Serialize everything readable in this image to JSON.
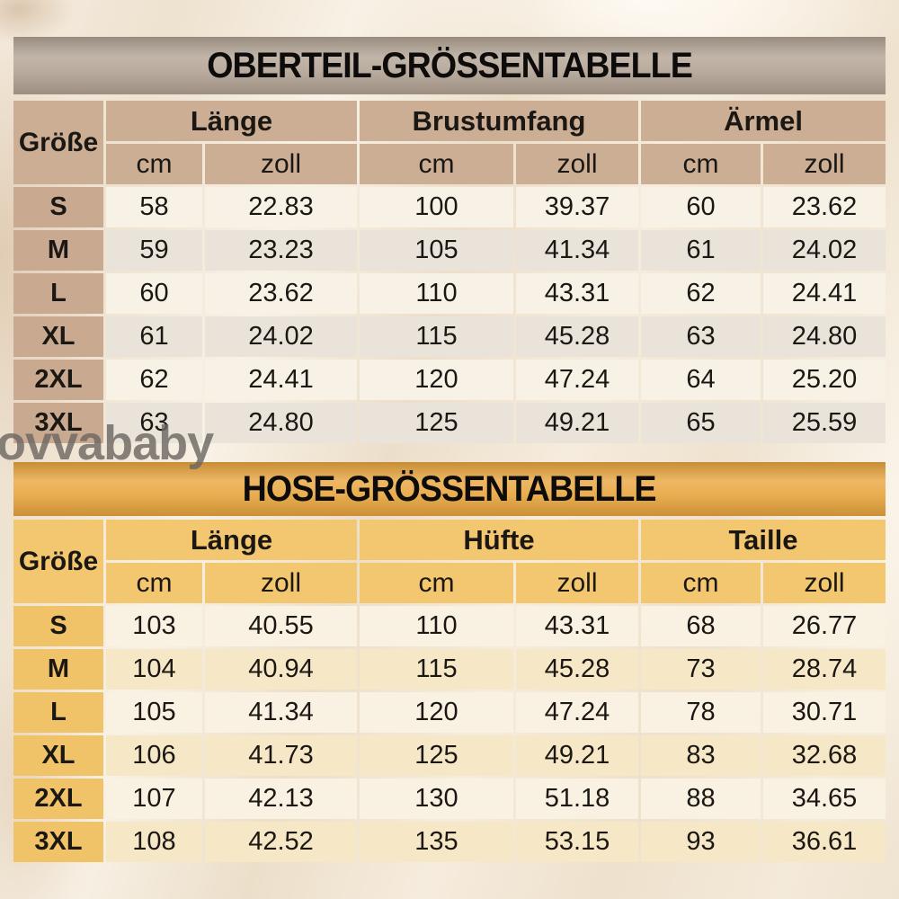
{
  "page": {
    "background_color": "#f2e7d7",
    "watermark": "ovvababy",
    "watermark_color": "#6b6661"
  },
  "tables": [
    {
      "title": "OBERTEIL-GRÖSSENTABELLE",
      "size_header": "Größe",
      "groups": [
        {
          "label": "Länge"
        },
        {
          "label": "Brustumfang"
        },
        {
          "label": "Ärmel"
        }
      ],
      "sub_headers": [
        "cm",
        "zoll",
        "cm",
        "zoll",
        "cm",
        "zoll"
      ],
      "theme": {
        "banner": "#b2a394",
        "header_bg": "#ccae95",
        "size_bg": "#c9aa91",
        "row_odd": "#f8f1e6",
        "row_even": "#e9e3da"
      },
      "rows": [
        {
          "size": "S",
          "values": [
            "58",
            "22.83",
            "100",
            "39.37",
            "60",
            "23.62"
          ]
        },
        {
          "size": "M",
          "values": [
            "59",
            "23.23",
            "105",
            "41.34",
            "61",
            "24.02"
          ]
        },
        {
          "size": "L",
          "values": [
            "60",
            "23.62",
            "110",
            "43.31",
            "62",
            "24.41"
          ]
        },
        {
          "size": "XL",
          "values": [
            "61",
            "24.02",
            "115",
            "45.28",
            "63",
            "24.80"
          ]
        },
        {
          "size": "2XL",
          "values": [
            "62",
            "24.41",
            "120",
            "47.24",
            "64",
            "25.20"
          ]
        },
        {
          "size": "3XL",
          "values": [
            "63",
            "24.80",
            "125",
            "49.21",
            "65",
            "25.59"
          ]
        }
      ]
    },
    {
      "title": "HOSE-GRÖSSENTABELLE",
      "size_header": "Größe",
      "groups": [
        {
          "label": "Länge"
        },
        {
          "label": "Hüfte"
        },
        {
          "label": "Taille"
        }
      ],
      "sub_headers": [
        "cm",
        "zoll",
        "cm",
        "zoll",
        "cm",
        "zoll"
      ],
      "theme": {
        "banner": "#e8a53e",
        "header_bg": "#f3c76f",
        "size_bg": "#f0c368",
        "row_odd": "#f9f1e2",
        "row_even": "#f6e7c6"
      },
      "rows": [
        {
          "size": "S",
          "values": [
            "103",
            "40.55",
            "110",
            "43.31",
            "68",
            "26.77"
          ]
        },
        {
          "size": "M",
          "values": [
            "104",
            "40.94",
            "115",
            "45.28",
            "73",
            "28.74"
          ]
        },
        {
          "size": "L",
          "values": [
            "105",
            "41.34",
            "120",
            "47.24",
            "78",
            "30.71"
          ]
        },
        {
          "size": "XL",
          "values": [
            "106",
            "41.73",
            "125",
            "49.21",
            "83",
            "32.68"
          ]
        },
        {
          "size": "2XL",
          "values": [
            "107",
            "42.13",
            "130",
            "51.18",
            "88",
            "34.65"
          ]
        },
        {
          "size": "3XL",
          "values": [
            "108",
            "42.52",
            "135",
            "53.15",
            "93",
            "36.61"
          ]
        }
      ]
    }
  ],
  "chart_data": [
    {
      "type": "table",
      "title": "OBERTEIL-GRÖSSENTABELLE",
      "columns": [
        "Größe",
        "Länge cm",
        "Länge zoll",
        "Brustumfang cm",
        "Brustumfang zoll",
        "Ärmel cm",
        "Ärmel zoll"
      ],
      "rows": [
        [
          "S",
          58,
          22.83,
          100,
          39.37,
          60,
          23.62
        ],
        [
          "M",
          59,
          23.23,
          105,
          41.34,
          61,
          24.02
        ],
        [
          "L",
          60,
          23.62,
          110,
          43.31,
          62,
          24.41
        ],
        [
          "XL",
          61,
          24.02,
          115,
          45.28,
          63,
          24.8
        ],
        [
          "2XL",
          62,
          24.41,
          120,
          47.24,
          64,
          25.2
        ],
        [
          "3XL",
          63,
          24.8,
          125,
          49.21,
          65,
          25.59
        ]
      ]
    },
    {
      "type": "table",
      "title": "HOSE-GRÖSSENTABELLE",
      "columns": [
        "Größe",
        "Länge cm",
        "Länge zoll",
        "Hüfte cm",
        "Hüfte zoll",
        "Taille cm",
        "Taille zoll"
      ],
      "rows": [
        [
          "S",
          103,
          40.55,
          110,
          43.31,
          68,
          26.77
        ],
        [
          "M",
          104,
          40.94,
          115,
          45.28,
          73,
          28.74
        ],
        [
          "L",
          105,
          41.34,
          120,
          47.24,
          78,
          30.71
        ],
        [
          "XL",
          106,
          41.73,
          125,
          49.21,
          83,
          32.68
        ],
        [
          "2XL",
          107,
          42.13,
          130,
          51.18,
          88,
          34.65
        ],
        [
          "3XL",
          108,
          42.52,
          135,
          53.15,
          93,
          36.61
        ]
      ]
    }
  ]
}
